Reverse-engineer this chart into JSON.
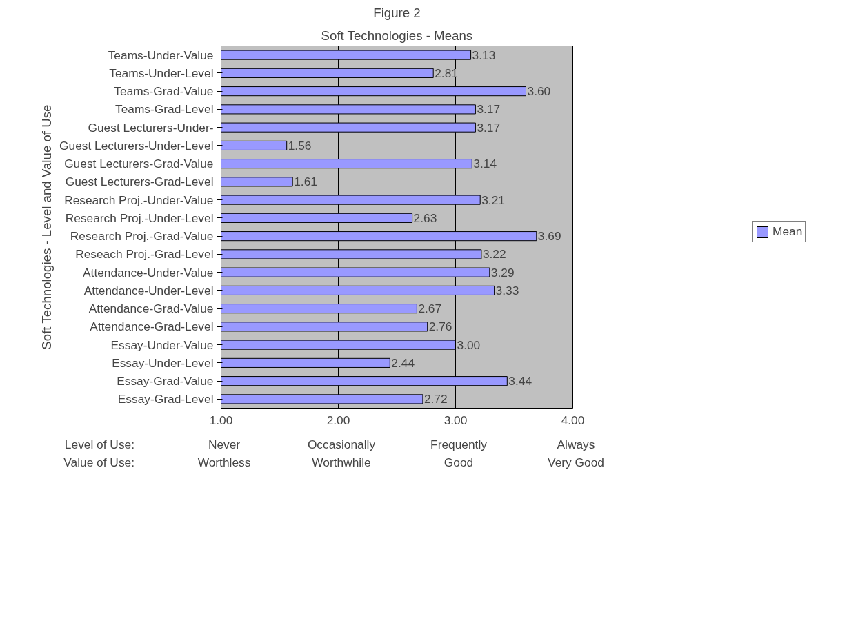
{
  "chart_data": {
    "type": "bar",
    "orientation": "horizontal",
    "title": "Figure 2",
    "subtitle": "Soft Technologies - Means",
    "ylabel": "Soft Technologies - Level and Value of Use",
    "categories": [
      "Teams-Under-Value",
      "Teams-Under-Level",
      "Teams-Grad-Value",
      "Teams-Grad-Level",
      "Guest Lecturers-Under-",
      "Guest Lecturers-Under-Level",
      "Guest Lecturers-Grad-Value",
      "Guest Lecturers-Grad-Level",
      "Research Proj.-Under-Value",
      "Research Proj.-Under-Level",
      "Research Proj.-Grad-Value",
      "Reseach Proj.-Grad-Level",
      "Attendance-Under-Value",
      "Attendance-Under-Level",
      "Attendance-Grad-Value",
      "Attendance-Grad-Level",
      "Essay-Under-Value",
      "Essay-Under-Level",
      "Essay-Grad-Value",
      "Essay-Grad-Level"
    ],
    "series": [
      {
        "name": "Mean",
        "color": "#9999ff",
        "values": [
          3.13,
          2.81,
          3.6,
          3.17,
          3.17,
          1.56,
          3.14,
          1.61,
          3.21,
          2.63,
          3.69,
          3.22,
          3.29,
          3.33,
          2.67,
          2.76,
          3.0,
          2.44,
          3.44,
          2.72
        ],
        "value_labels": [
          "3.13",
          "2.81",
          "3.60",
          "3.17",
          "3.17",
          "1.56",
          "3.14",
          "1.61",
          "3.21",
          "2.63",
          "3.69",
          "3.22",
          "3.29",
          "3.33",
          "2.67",
          "2.76",
          "3.00",
          "2.44",
          "3.44",
          "2.72"
        ]
      }
    ],
    "xlim": [
      1,
      4
    ],
    "xticks": [
      {
        "value": 1,
        "label": "1.00"
      },
      {
        "value": 2,
        "label": "2.00"
      },
      {
        "value": 3,
        "label": "3.00"
      },
      {
        "value": 4,
        "label": "4.00"
      }
    ],
    "grid": "x",
    "legend": "right",
    "annotations": [
      "Level of Use:",
      "Never",
      "Occasionally",
      "Frequently",
      "Always",
      "Value of Use:",
      "Worthless",
      "Worthwhile",
      "Good",
      "Very Good"
    ]
  }
}
